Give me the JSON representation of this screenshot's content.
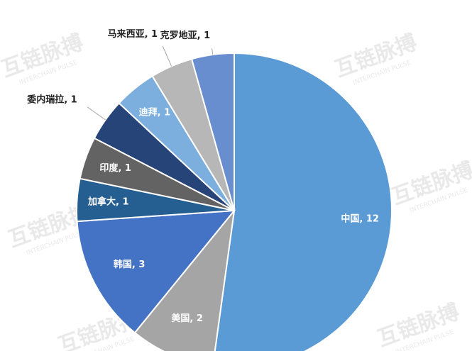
{
  "chart_data": {
    "type": "pie",
    "categories": [
      "中国, 12",
      "美国, 2",
      "韩国, 3",
      "加拿大, 1",
      "印度, 1",
      "委内瑞拉, 1",
      "迪拜, 1",
      "马来西亚, 1",
      "克罗地亚, 1"
    ],
    "values": [
      12,
      2,
      3,
      1,
      1,
      1,
      1,
      1,
      1
    ],
    "colors": [
      "#5b9bd5",
      "#a5a5a5",
      "#4472c4",
      "#255e91",
      "#636363",
      "#264478",
      "#7cafdd",
      "#b7b7b7",
      "#698ed0"
    ],
    "watermark": {
      "name": "互链脉搏",
      "sub": "INTERCHAIN PULSE"
    }
  }
}
